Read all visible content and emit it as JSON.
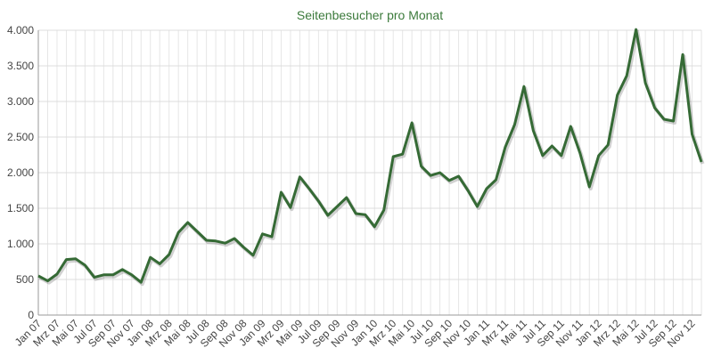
{
  "chart_data": {
    "type": "line",
    "title": "Seitenbesucher pro Monat",
    "categories": [
      "Jan 07",
      null,
      "Mrz 07",
      null,
      "Mai 07",
      null,
      "Jul 07",
      null,
      "Sep 07",
      null,
      "Nov 07",
      null,
      "Jan 08",
      null,
      "Mrz 08",
      null,
      "Mai 08",
      null,
      "Jul 08",
      null,
      "Sep 08",
      null,
      "Nov 08",
      null,
      "Jan 09",
      null,
      "Mrz 09",
      null,
      "Mai 09",
      null,
      "Jul 09",
      null,
      "Sep 09",
      null,
      "Nov 09",
      null,
      "Jan 10",
      null,
      "Mrz 10",
      null,
      "Mai 10",
      null,
      "Jul 10",
      null,
      "Sep 10",
      null,
      "Nov 10",
      null,
      "Jan 11",
      null,
      "Mrz 11",
      null,
      "Mai 11",
      null,
      "Jul 11",
      null,
      "Sep 11",
      null,
      "Nov 11",
      null,
      "Jan 12",
      null,
      "Mrz 12",
      null,
      "Mai 12",
      null,
      "Jul 12",
      null,
      "Sep 12",
      null,
      "Nov 12",
      null
    ],
    "series": [
      {
        "color": "#356a35",
        "values": [
          550,
          480,
          575,
          780,
          790,
          700,
          530,
          565,
          565,
          640,
          565,
          460,
          810,
          720,
          850,
          1160,
          1300,
          1175,
          1050,
          1040,
          1010,
          1075,
          950,
          840,
          1140,
          1100,
          1725,
          1510,
          1940,
          1775,
          1600,
          1400,
          1525,
          1650,
          1425,
          1410,
          1240,
          1475,
          2225,
          2260,
          2700,
          2090,
          1960,
          2000,
          1890,
          1950,
          1750,
          1525,
          1775,
          1900,
          2360,
          2675,
          3210,
          2590,
          2240,
          2375,
          2240,
          2650,
          2275,
          1800,
          2240,
          2390,
          3090,
          3360,
          4010,
          3260,
          2910,
          2750,
          2725,
          3660,
          2540,
          2150
        ]
      }
    ],
    "ylim": [
      0,
      4000
    ],
    "yticks": [
      0,
      500,
      {
        "value": 1000,
        "label": "1.000"
      },
      {
        "value": 1500,
        "label": "1.500"
      },
      {
        "value": 2000,
        "label": "2.000"
      },
      {
        "value": 2500,
        "label": "2.500"
      },
      {
        "value": 3000,
        "label": "3.000"
      },
      {
        "value": 3500,
        "label": "3.500"
      },
      {
        "value": 4000,
        "label": "4.000"
      }
    ],
    "grid": true
  }
}
